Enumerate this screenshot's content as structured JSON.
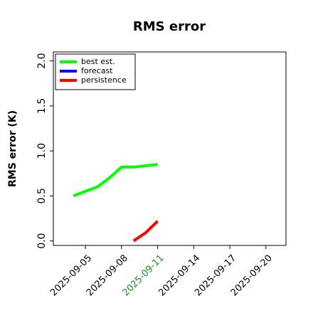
{
  "chart_data": {
    "type": "line",
    "title": "RMS error",
    "ylabel": "RMS error (K)",
    "xlim": [
      "2025-09-02T08:00",
      "2025-09-21T16:00"
    ],
    "xticks": [
      "2025-09-05",
      "2025-09-08",
      "2025-09-11",
      "2025-09-14",
      "2025-09-17",
      "2025-09-20"
    ],
    "highlight_xtick_index": 2,
    "highlight_color": "#228b22",
    "ylim": [
      -0.05,
      2.1
    ],
    "yticks": [
      {
        "value": 0,
        "label": "0.0"
      },
      {
        "value": 0.5,
        "label": "0.5"
      },
      {
        "value": 1,
        "label": "1.0"
      },
      {
        "value": 1.5,
        "label": "1.5"
      },
      {
        "value": 2,
        "label": "2.0"
      }
    ],
    "legend": "upper left",
    "series": [
      {
        "name": "best est.",
        "color": "#00ff00",
        "x": [
          "2025-09-04",
          "2025-09-06",
          "2025-09-07",
          "2025-09-08",
          "2025-09-09",
          "2025-09-11"
        ],
        "values": [
          0.5,
          0.6,
          0.7,
          0.82,
          0.82,
          0.85
        ]
      },
      {
        "name": "forecast",
        "color": "#0000ff",
        "x": [],
        "values": []
      },
      {
        "name": "persistence",
        "color": "#ff0000",
        "x": [
          "2025-09-09",
          "2025-09-10",
          "2025-09-11"
        ],
        "values": [
          0.0,
          0.09,
          0.22
        ]
      }
    ]
  }
}
